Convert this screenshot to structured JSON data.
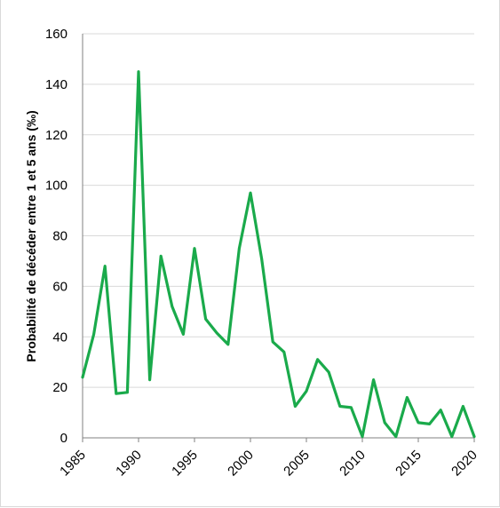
{
  "chart_data": {
    "type": "line",
    "title": "",
    "top_text": "",
    "ylabel": "Probabilité de décéder entre 1 et 5 ans (‰)",
    "xlabel": "",
    "ylim": [
      0,
      160
    ],
    "xlim": [
      1985,
      2020
    ],
    "yticks": [
      "0",
      "20",
      "40",
      "60",
      "80",
      "100",
      "120",
      "140",
      "160"
    ],
    "xticks": [
      "1985",
      "1990",
      "1995",
      "2000",
      "2005",
      "2010",
      "2015",
      "2020"
    ],
    "grid": true,
    "line_color": "#1aaa4b",
    "series": [
      {
        "name": "",
        "x": [
          1985,
          1986,
          1987,
          1988,
          1989,
          1990,
          1991,
          1992,
          1993,
          1994,
          1995,
          1996,
          1997,
          1998,
          1999,
          2000,
          2001,
          2002,
          2003,
          2004,
          2005,
          2006,
          2007,
          2008,
          2009,
          2010,
          2011,
          2012,
          2013,
          2014,
          2015,
          2016,
          2017,
          2018,
          2019,
          2020
        ],
        "values": [
          24,
          41,
          68,
          17.5,
          18,
          145,
          23,
          72,
          52,
          41,
          75,
          47,
          41.5,
          37,
          75,
          97,
          71,
          38,
          34,
          12.5,
          18.5,
          31,
          26,
          12.5,
          12,
          0.5,
          23,
          6,
          0.5,
          16,
          6,
          5.5,
          11,
          0.5,
          12.5,
          0.5
        ]
      }
    ]
  }
}
